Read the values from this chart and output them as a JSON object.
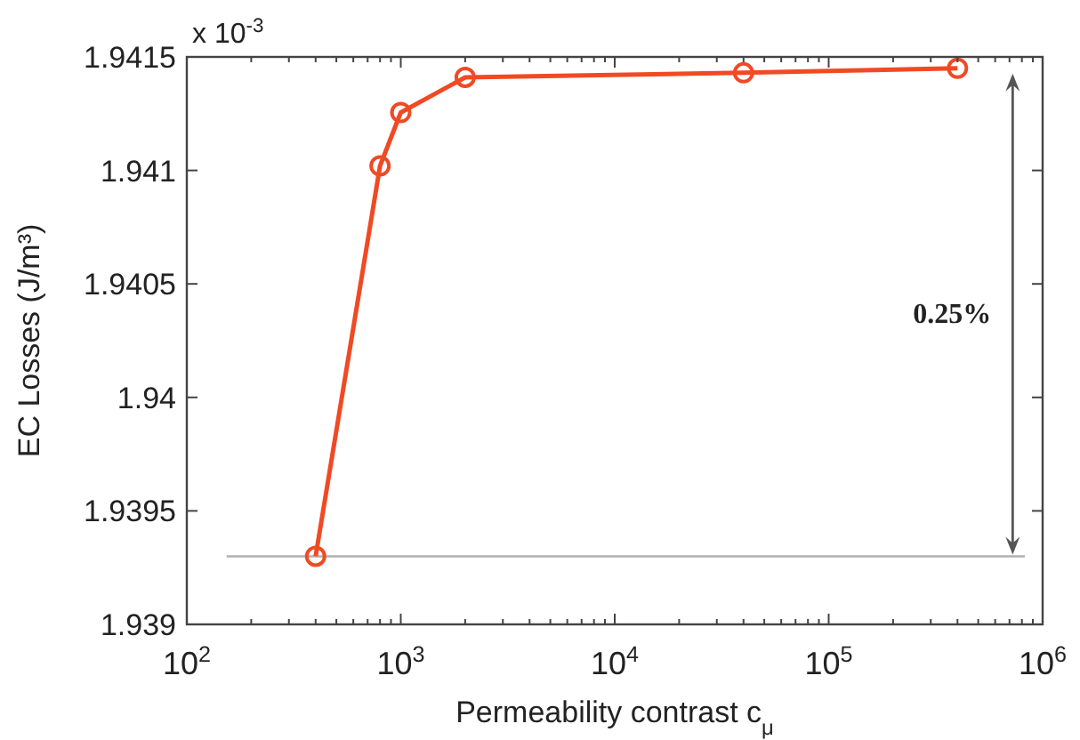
{
  "chart_data": {
    "type": "line",
    "xlabel": "Permeability contrast c$_{μ}$",
    "ylabel": "EC Losses (J/m³)",
    "x": [
      400,
      800,
      1000,
      2000,
      40000,
      400000
    ],
    "series": [
      {
        "color": "#f04a24",
        "values": [
          1.9393,
          1.94102,
          1.941255,
          1.94141,
          1.94143,
          1.94145
        ]
      }
    ],
    "log": "x",
    "xlim": [
      100,
      1000000
    ],
    "xticks": [
      {
        "value": 100,
        "label": "10$^{2}$"
      },
      {
        "value": 1000,
        "label": "10$^{3}$"
      },
      {
        "value": 10000,
        "label": "10$^{4}$"
      },
      {
        "value": 100000,
        "label": "10$^{5}$"
      },
      {
        "value": 1000000,
        "label": "10$^{6}$"
      }
    ],
    "ylim": [
      1.939,
      1.9415
    ],
    "yticks": [
      1.939,
      1.9395,
      1.94,
      1.9405,
      1.941,
      1.9415
    ],
    "marker": "circle",
    "grid": false,
    "ref_lines": [
      {
        "axis": "y",
        "value": 1.9393,
        "color": "#b0b0b0"
      }
    ],
    "annotations": [
      "x 10$^{-3}$",
      "0.25%"
    ]
  }
}
